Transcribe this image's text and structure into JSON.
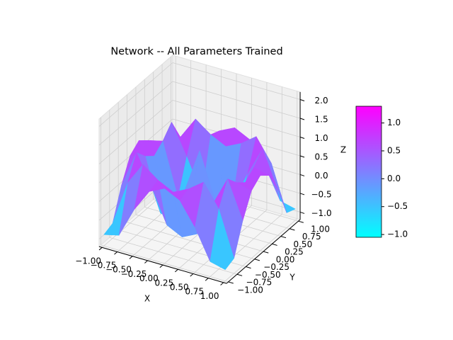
{
  "chart_data": {
    "type": "surface",
    "title": "Network -- All Parameters Trained",
    "x_label": "X",
    "y_label": "Y",
    "z_label": "Z",
    "x": [
      -1,
      -0.75,
      -0.5,
      -0.25,
      0,
      0.25,
      0.5,
      0.75,
      1
    ],
    "y": [
      -1,
      -0.75,
      -0.5,
      -0.25,
      0,
      0.25,
      0.5,
      0.75,
      1
    ],
    "z": [
      [
        -0.9,
        -0.8,
        0.0,
        0.6,
        0.8,
        0.6,
        0.0,
        -0.8,
        -0.9
      ],
      [
        -0.8,
        0.4,
        1.0,
        0.7,
        0.5,
        0.7,
        1.0,
        0.4,
        -0.8
      ],
      [
        0.0,
        1.0,
        0.2,
        -0.7,
        -0.9,
        -0.7,
        0.2,
        1.0,
        0.0
      ],
      [
        0.6,
        0.7,
        -0.7,
        -0.8,
        -0.2,
        -0.8,
        -0.7,
        0.7,
        0.6
      ],
      [
        0.8,
        0.5,
        -0.9,
        -0.2,
        1.0,
        -0.2,
        -0.9,
        0.5,
        0.8
      ],
      [
        0.6,
        0.7,
        -0.7,
        -0.8,
        -0.2,
        -0.8,
        -0.7,
        0.7,
        0.6
      ],
      [
        0.0,
        1.0,
        0.2,
        -0.7,
        -0.9,
        -0.7,
        0.2,
        1.0,
        0.0
      ],
      [
        -0.8,
        0.4,
        1.0,
        0.7,
        0.5,
        0.7,
        1.0,
        0.4,
        -0.8
      ],
      [
        -0.9,
        -0.8,
        0.0,
        0.6,
        0.8,
        0.6,
        0.0,
        -0.8,
        -0.9
      ]
    ],
    "xlim": [
      -1.05,
      1.05
    ],
    "ylim": [
      -1.05,
      1.05
    ],
    "zlim": [
      -1.2,
      2.2
    ],
    "xticks": [
      {
        "value": -1,
        "label": "−1.00"
      },
      {
        "value": -0.75,
        "label": "−0.75"
      },
      {
        "value": -0.5,
        "label": "−0.50"
      },
      {
        "value": -0.25,
        "label": "−0.25"
      },
      {
        "value": 0,
        "label": "0.00"
      },
      {
        "value": 0.25,
        "label": "0.25"
      },
      {
        "value": 0.5,
        "label": "0.50"
      },
      {
        "value": 0.75,
        "label": "0.75"
      },
      {
        "value": 1,
        "label": "1.00"
      }
    ],
    "yticks": [
      {
        "value": -1,
        "label": "−1.00"
      },
      {
        "value": -0.75,
        "label": "−0.75"
      },
      {
        "value": -0.5,
        "label": "−0.50"
      },
      {
        "value": -0.25,
        "label": "−0.25"
      },
      {
        "value": 0,
        "label": "0.00"
      },
      {
        "value": 0.25,
        "label": "0.25"
      },
      {
        "value": 0.5,
        "label": "0.50"
      },
      {
        "value": 0.75,
        "label": "0.75"
      },
      {
        "value": 1,
        "label": "1.00"
      }
    ],
    "zticks": [
      {
        "value": -1,
        "label": "−1.0"
      },
      {
        "value": -0.5,
        "label": "−0.5"
      },
      {
        "value": 0,
        "label": "0.0"
      },
      {
        "value": 0.5,
        "label": "0.5"
      },
      {
        "value": 1,
        "label": "1.0"
      },
      {
        "value": 1.5,
        "label": "1.5"
      },
      {
        "value": 2,
        "label": "2.0"
      }
    ],
    "colormap": [
      "#00ffff",
      "#ff00ff"
    ],
    "colorbar_lim": [
      -1.05,
      1.3
    ],
    "colorbar_ticks": [
      {
        "value": -1,
        "label": "−1.0"
      },
      {
        "value": -0.5,
        "label": "−0.5"
      },
      {
        "value": 0,
        "label": "0.0"
      },
      {
        "value": 0.5,
        "label": "0.5"
      },
      {
        "value": 1,
        "label": "1.0"
      }
    ],
    "grid": true
  }
}
